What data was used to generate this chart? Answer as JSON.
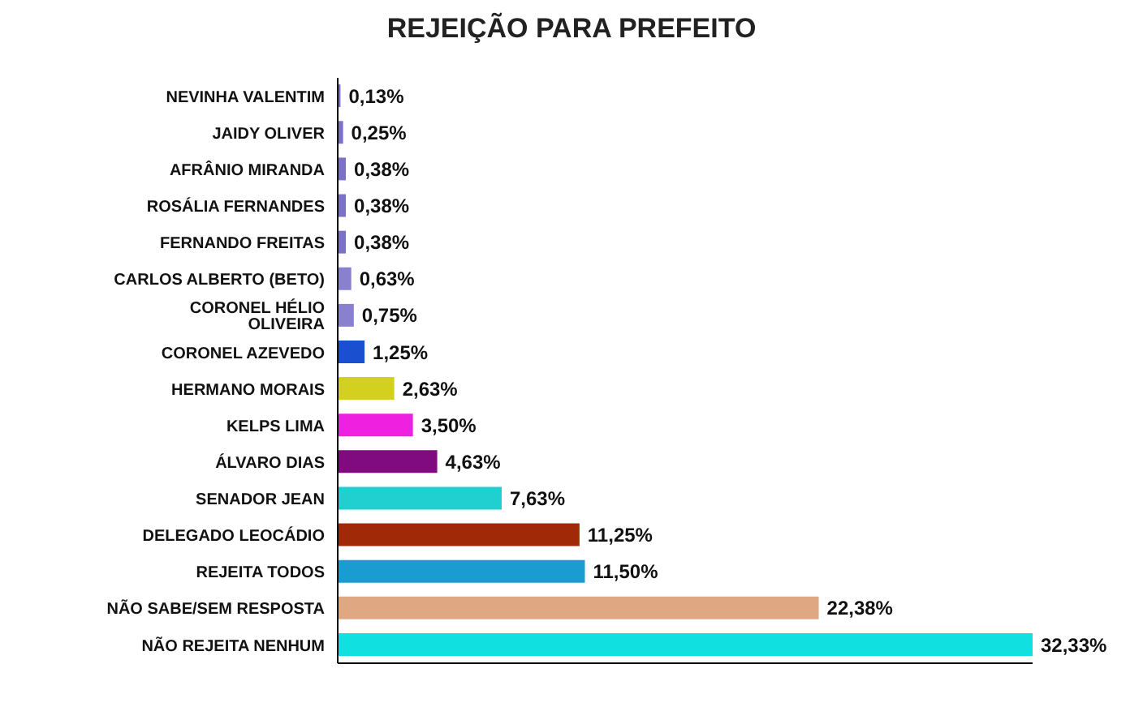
{
  "chart_data": {
    "type": "bar",
    "orientation": "horizontal",
    "title": "REJEIÇÃO PARA PREFEITO",
    "categories": [
      "NEVINHA VALENTIM",
      "JAIDY OLIVER",
      "AFRÂNIO MIRANDA",
      "ROSÁLIA FERNANDES",
      "FERNANDO FREITAS",
      "CARLOS ALBERTO (BETO)",
      "CORONEL HÉLIO OLIVEIRA",
      "CORONEL AZEVEDO",
      "HERMANO MORAIS",
      "KELPS LIMA",
      "ÁLVARO DIAS",
      "SENADOR JEAN",
      "DELEGADO LEOCÁDIO",
      "REJEITA TODOS",
      "NÃO SABE/SEM RESPOSTA",
      "NÃO REJEITA NENHUM"
    ],
    "values": [
      0.13,
      0.25,
      0.38,
      0.38,
      0.38,
      0.63,
      0.75,
      1.25,
      2.63,
      3.5,
      4.63,
      7.63,
      11.25,
      11.5,
      22.38,
      32.33
    ],
    "value_labels": [
      "0,13%",
      "0,25%",
      "0,38%",
      "0,38%",
      "0,38%",
      "0,63%",
      "0,75%",
      "1,25%",
      "2,63%",
      "3,50%",
      "4,63%",
      "7,63%",
      "11,25%",
      "11,50%",
      "22,38%",
      "32,33%"
    ],
    "colors": [
      "#7b72c8",
      "#7b72c8",
      "#7b72c8",
      "#7b72c8",
      "#7b72c8",
      "#8a80d0",
      "#8a80d0",
      "#1a4fd0",
      "#d4d020",
      "#f020e0",
      "#800a80",
      "#20d0d0",
      "#a02a08",
      "#1a9cd0",
      "#e0a882",
      "#10e0e0"
    ]
  }
}
